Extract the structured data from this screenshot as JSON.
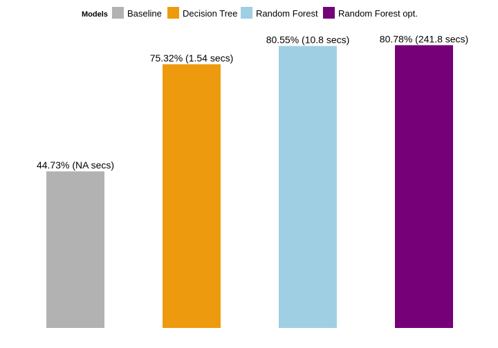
{
  "chart_data": {
    "type": "bar",
    "title": "",
    "xlabel": "",
    "ylabel": "",
    "ylim": [
      0,
      100
    ],
    "grid": false,
    "legend": {
      "title": "Models",
      "placement": "top",
      "entries": [
        "Baseline",
        "Decision Tree",
        "Random Forest",
        "Random Forest opt."
      ]
    },
    "categories": [
      "Baseline",
      "Decision Tree",
      "Random Forest",
      "Random Forest opt."
    ],
    "values": [
      44.73,
      75.32,
      80.55,
      80.78
    ],
    "data_labels": [
      "44.73% (NA secs)",
      "75.32% (1.54 secs)",
      "80.55% (10.8 secs)",
      "80.78% (241.8 secs)"
    ],
    "colors": [
      "#b2b2b2",
      "#ee9a0e",
      "#9fcfe2",
      "#750078"
    ]
  }
}
